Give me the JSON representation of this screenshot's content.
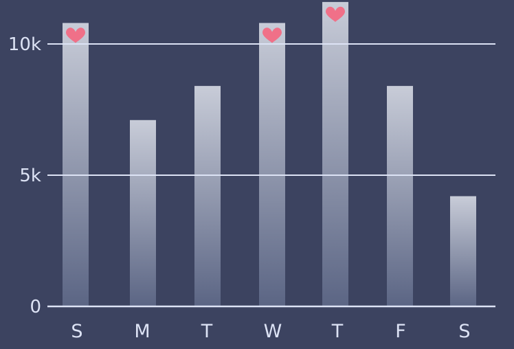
{
  "chart_data": {
    "type": "bar",
    "categories": [
      "S",
      "M",
      "T",
      "W",
      "T",
      "F",
      "S"
    ],
    "values": [
      10800,
      7100,
      8400,
      10800,
      11600,
      8400,
      4200
    ],
    "highlighted": [
      true,
      false,
      false,
      true,
      true,
      false,
      false
    ],
    "highlight_icon": "heart-icon",
    "yticks": [
      {
        "value": 0,
        "label": "0"
      },
      {
        "value": 5000,
        "label": "5k"
      },
      {
        "value": 10000,
        "label": "10k"
      }
    ],
    "ylim": [
      0,
      12000
    ],
    "grid": true,
    "legend": "none"
  },
  "colors": {
    "background": "#3c4360",
    "gridline": "#dde3f5",
    "label": "#dde3f5",
    "bar_top": "#c8ccd8",
    "bar_bottom": "#5b6584",
    "heart": "#f07088"
  }
}
